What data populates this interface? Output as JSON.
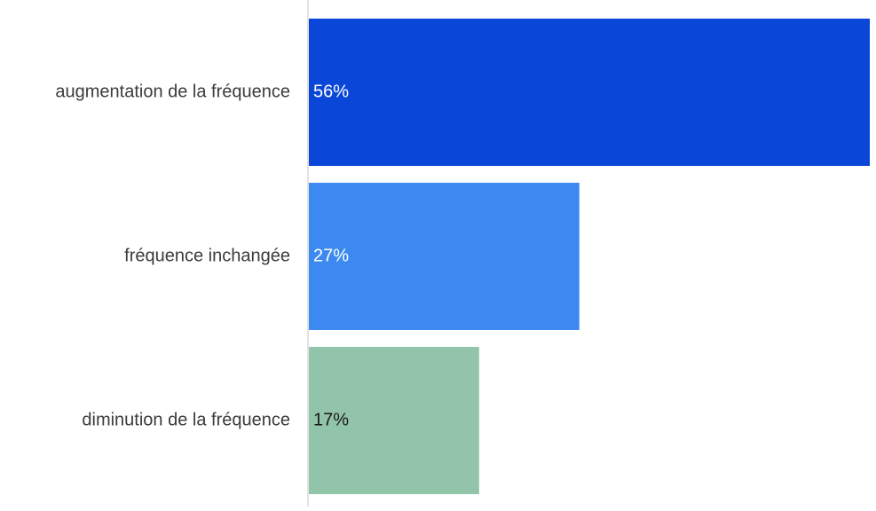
{
  "chart_data": {
    "type": "bar",
    "orientation": "horizontal",
    "categories": [
      "augmentation de la fréquence",
      "fréquence inchangée",
      "diminution de la fréquence"
    ],
    "values": [
      56,
      27,
      17
    ],
    "value_labels": [
      "56%",
      "27%",
      "17%"
    ],
    "unit": "%",
    "bar_colors": [
      "#0a47d8",
      "#3c8af0",
      "#92c4aa"
    ],
    "value_label_colors": [
      "#ffffff",
      "#ffffff",
      "#1a1a1a"
    ],
    "title": "",
    "xlabel": "",
    "ylabel": "",
    "xlim": [
      0,
      56
    ],
    "grid": false,
    "legend": "none"
  }
}
